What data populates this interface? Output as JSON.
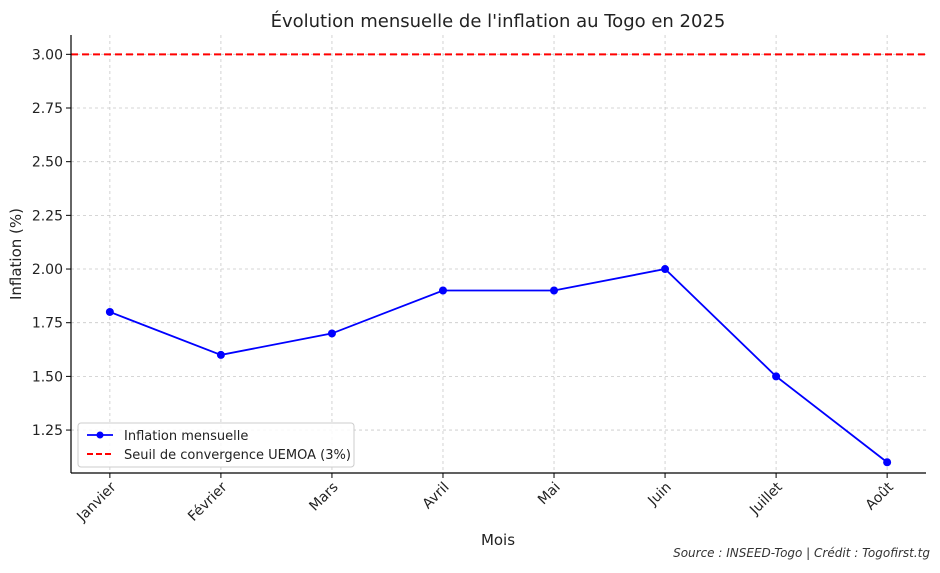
{
  "chart_data": {
    "type": "line",
    "title": "Évolution mensuelle de l'inflation au Togo en 2025",
    "xlabel": "Mois",
    "ylabel": "Inflation (%)",
    "categories": [
      "Janvier",
      "Février",
      "Mars",
      "Avril",
      "Mai",
      "Juin",
      "Juillet",
      "Août"
    ],
    "series": [
      {
        "name": "Inflation mensuelle",
        "values": [
          1.8,
          1.6,
          1.7,
          1.9,
          1.9,
          2.0,
          1.5,
          1.1
        ],
        "color": "#0000ff",
        "marker": "circle"
      }
    ],
    "reference_lines": [
      {
        "name": "Seuil de convergence UEMOA (3%)",
        "value": 3.0,
        "color": "#ff0000",
        "style": "dashed"
      }
    ],
    "ylim": [
      1.05,
      3.09
    ],
    "yticks": [
      1.25,
      1.5,
      1.75,
      2.0,
      2.25,
      2.5,
      2.75,
      3.0
    ],
    "ytick_labels": [
      "1.25",
      "1.50",
      "1.75",
      "2.00",
      "2.25",
      "2.50",
      "2.75",
      "3.00"
    ],
    "grid": true,
    "legend_position": "lower-left",
    "x_tick_rotation": -45
  },
  "footer": {
    "source": "Source : INSEED-Togo | Crédit : Togofirst.tg"
  }
}
